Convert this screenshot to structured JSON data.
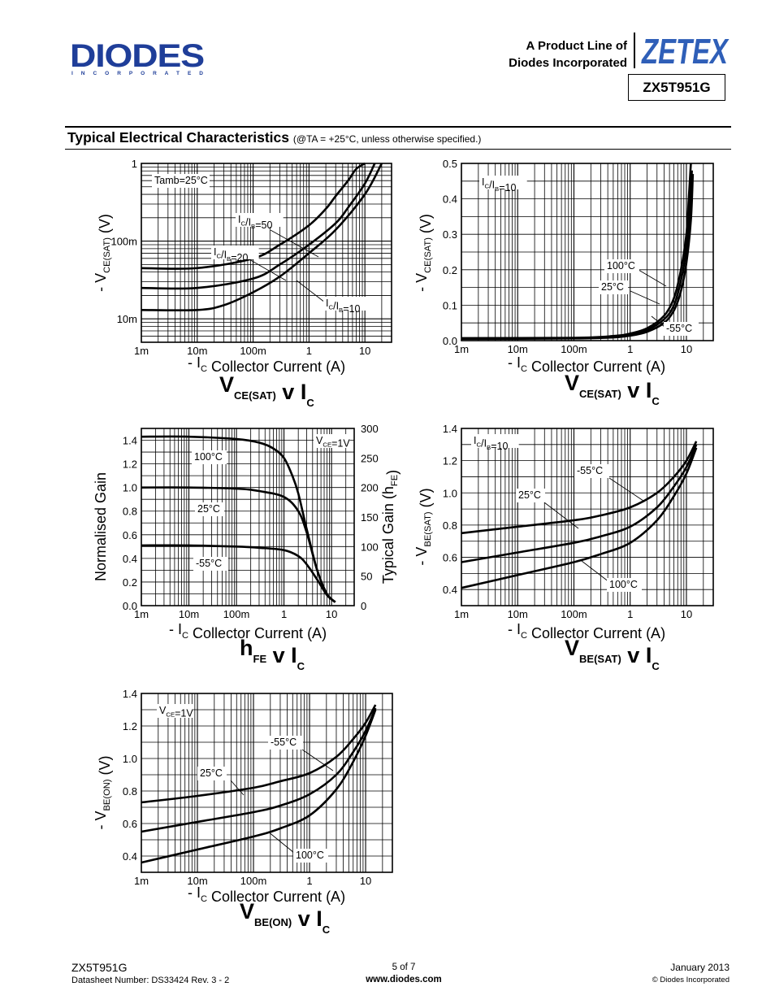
{
  "header": {
    "logo_text": "DIODES",
    "logo_sub": "I N C O R P O R A T E D",
    "product_line_1": "A Product Line of",
    "product_line_2": "Diodes Incorporated",
    "zetex_text": "ZETEX",
    "part_number": "ZX5T951G"
  },
  "section": {
    "title": "Typical Electrical Characteristics",
    "note": "(@TA = +25°C, unless otherwise specified.)"
  },
  "colors": {
    "ink": "#000000",
    "logo_blue": "#1f3e99",
    "zetex_blue": "#2f5fb8"
  },
  "chart_data": [
    {
      "id": "vcesat-tamb",
      "type": "line",
      "title": "VCE(SAT) v IC",
      "xlabel": "- IC Collector Current (A)",
      "ylabel": "- VCE(SAT) (V)",
      "xscale": "log",
      "yscale": "log",
      "xlim": [
        0.001,
        30
      ],
      "ylim": [
        0.005,
        1
      ],
      "xticks": [
        {
          "v": 0.001,
          "t": "1m"
        },
        {
          "v": 0.01,
          "t": "10m"
        },
        {
          "v": 0.1,
          "t": "100m"
        },
        {
          "v": 1,
          "t": "1"
        },
        {
          "v": 10,
          "t": "10"
        }
      ],
      "yticks": [
        {
          "v": 0.01,
          "t": "10m"
        },
        {
          "v": 0.1,
          "t": "100m"
        },
        {
          "v": 1,
          "t": "1"
        }
      ],
      "annotations": [
        "Tamb=25°C",
        "IC/IB=50",
        "IC/IB=20",
        "IC/IB=10"
      ],
      "series": [
        {
          "name": "IC/IB=50",
          "x": [
            0.001,
            0.01,
            0.1,
            0.3,
            1,
            2,
            3,
            5,
            7,
            10
          ],
          "y": [
            0.045,
            0.045,
            0.06,
            0.09,
            0.16,
            0.26,
            0.38,
            0.6,
            0.85,
            1.0
          ]
        },
        {
          "name": "IC/IB=20",
          "x": [
            0.001,
            0.01,
            0.1,
            0.3,
            1,
            3,
            5,
            10,
            15
          ],
          "y": [
            0.025,
            0.025,
            0.033,
            0.05,
            0.09,
            0.17,
            0.27,
            0.55,
            1.0
          ]
        },
        {
          "name": "IC/IB=10",
          "x": [
            0.001,
            0.01,
            0.03,
            0.1,
            0.3,
            1,
            3,
            10,
            20
          ],
          "y": [
            0.013,
            0.013,
            0.015,
            0.022,
            0.035,
            0.07,
            0.14,
            0.4,
            1.0
          ]
        }
      ]
    },
    {
      "id": "vcesat-temp",
      "type": "line",
      "title": "VCE(SAT) v IC",
      "xlabel": "- IC Collector Current (A)",
      "ylabel": "- VCE(SAT) (V)",
      "xscale": "log",
      "yscale": "linear",
      "xlim": [
        0.001,
        30
      ],
      "ylim": [
        0,
        0.5
      ],
      "xticks": [
        {
          "v": 0.001,
          "t": "1m"
        },
        {
          "v": 0.01,
          "t": "10m"
        },
        {
          "v": 0.1,
          "t": "100m"
        },
        {
          "v": 1,
          "t": "1"
        },
        {
          "v": 10,
          "t": "10"
        }
      ],
      "yticks": [
        {
          "v": 0,
          "t": "0.0"
        },
        {
          "v": 0.1,
          "t": "0.1"
        },
        {
          "v": 0.2,
          "t": "0.2"
        },
        {
          "v": 0.3,
          "t": "0.3"
        },
        {
          "v": 0.4,
          "t": "0.4"
        },
        {
          "v": 0.5,
          "t": "0.5"
        }
      ],
      "annotations": [
        "IC/IB=10",
        "100°C",
        "25°C",
        "-55°C"
      ],
      "series": [
        {
          "name": "100°C",
          "x": [
            0.001,
            0.1,
            0.5,
            1,
            2,
            4,
            6,
            8,
            10,
            11,
            12
          ],
          "y": [
            0.007,
            0.008,
            0.013,
            0.02,
            0.035,
            0.07,
            0.12,
            0.2,
            0.3,
            0.4,
            0.5
          ]
        },
        {
          "name": "25°C",
          "x": [
            0.001,
            0.1,
            0.5,
            1,
            2,
            4,
            6,
            8,
            10,
            11.5,
            12.5
          ],
          "y": [
            0.006,
            0.007,
            0.011,
            0.017,
            0.03,
            0.06,
            0.1,
            0.17,
            0.26,
            0.37,
            0.48
          ]
        },
        {
          "name": "-55°C",
          "x": [
            0.001,
            0.1,
            0.5,
            1,
            2,
            4,
            6,
            8,
            10,
            12,
            13
          ],
          "y": [
            0.005,
            0.006,
            0.009,
            0.014,
            0.025,
            0.05,
            0.085,
            0.14,
            0.22,
            0.34,
            0.47
          ]
        }
      ]
    },
    {
      "id": "hfe",
      "type": "line",
      "title": "hFE v IC",
      "xlabel": "- IC Collector Current (A)",
      "ylabel": "Normalised Gain",
      "y2label": "Typical Gain (hFE)",
      "xscale": "log",
      "yscale": "linear",
      "xlim": [
        0.001,
        30
      ],
      "ylim": [
        0,
        1.5
      ],
      "y2lim": [
        0,
        300
      ],
      "xticks": [
        {
          "v": 0.001,
          "t": "1m"
        },
        {
          "v": 0.01,
          "t": "10m"
        },
        {
          "v": 0.1,
          "t": "100m"
        },
        {
          "v": 1,
          "t": "1"
        },
        {
          "v": 10,
          "t": "10"
        }
      ],
      "yticks": [
        {
          "v": 0,
          "t": "0.0"
        },
        {
          "v": 0.2,
          "t": "0.2"
        },
        {
          "v": 0.4,
          "t": "0.4"
        },
        {
          "v": 0.6,
          "t": "0.6"
        },
        {
          "v": 0.8,
          "t": "0.8"
        },
        {
          "v": 1.0,
          "t": "1.0"
        },
        {
          "v": 1.2,
          "t": "1.2"
        },
        {
          "v": 1.4,
          "t": "1.4"
        }
      ],
      "y2ticks": [
        {
          "v": 0,
          "t": "0"
        },
        {
          "v": 50,
          "t": "50"
        },
        {
          "v": 100,
          "t": "100"
        },
        {
          "v": 150,
          "t": "150"
        },
        {
          "v": 200,
          "t": "200"
        },
        {
          "v": 250,
          "t": "250"
        },
        {
          "v": 300,
          "t": "300"
        }
      ],
      "annotations": [
        "VCE=1V",
        "100°C",
        "25°C",
        "-55°C"
      ],
      "series": [
        {
          "name": "100°C",
          "x": [
            0.001,
            0.01,
            0.1,
            0.3,
            0.6,
            1,
            1.5,
            2,
            3,
            5,
            8,
            12
          ],
          "y": [
            1.43,
            1.43,
            1.41,
            1.38,
            1.33,
            1.25,
            1.1,
            0.95,
            0.65,
            0.3,
            0.1,
            0.03
          ]
        },
        {
          "name": "25°C",
          "x": [
            0.001,
            0.01,
            0.1,
            0.3,
            1,
            2,
            3,
            5,
            8,
            12
          ],
          "y": [
            1.0,
            1.0,
            0.99,
            0.97,
            0.92,
            0.8,
            0.62,
            0.3,
            0.1,
            0.03
          ]
        },
        {
          "name": "-55°C",
          "x": [
            0.001,
            0.01,
            0.1,
            0.3,
            1,
            2,
            3,
            5,
            8,
            12
          ],
          "y": [
            0.51,
            0.51,
            0.5,
            0.49,
            0.47,
            0.42,
            0.35,
            0.22,
            0.09,
            0.03
          ]
        }
      ]
    },
    {
      "id": "vbesat",
      "type": "line",
      "title": "VBE(SAT) v IC",
      "xlabel": "- IC Collector Current (A)",
      "ylabel": "- VBE(SAT) (V)",
      "xscale": "log",
      "yscale": "linear",
      "xlim": [
        0.001,
        30
      ],
      "ylim": [
        0.3,
        1.4
      ],
      "xticks": [
        {
          "v": 0.001,
          "t": "1m"
        },
        {
          "v": 0.01,
          "t": "10m"
        },
        {
          "v": 0.1,
          "t": "100m"
        },
        {
          "v": 1,
          "t": "1"
        },
        {
          "v": 10,
          "t": "10"
        }
      ],
      "yticks": [
        {
          "v": 0.4,
          "t": "0.4"
        },
        {
          "v": 0.6,
          "t": "0.6"
        },
        {
          "v": 0.8,
          "t": "0.8"
        },
        {
          "v": 1.0,
          "t": "1.0"
        },
        {
          "v": 1.2,
          "t": "1.2"
        },
        {
          "v": 1.4,
          "t": "1.4"
        }
      ],
      "annotations": [
        "IC/IB=10",
        "-55°C",
        "25°C",
        "100°C"
      ],
      "series": [
        {
          "name": "-55°C",
          "x": [
            0.001,
            0.01,
            0.1,
            0.3,
            1,
            3,
            6,
            10,
            15
          ],
          "y": [
            0.75,
            0.79,
            0.83,
            0.86,
            0.91,
            1.0,
            1.1,
            1.2,
            1.32
          ]
        },
        {
          "name": "25°C",
          "x": [
            0.001,
            0.01,
            0.1,
            0.3,
            1,
            3,
            6,
            10,
            15
          ],
          "y": [
            0.57,
            0.63,
            0.69,
            0.73,
            0.79,
            0.91,
            1.04,
            1.16,
            1.3
          ]
        },
        {
          "name": "100°C",
          "x": [
            0.001,
            0.01,
            0.1,
            0.3,
            1,
            3,
            6,
            10,
            15
          ],
          "y": [
            0.41,
            0.49,
            0.57,
            0.62,
            0.69,
            0.83,
            0.98,
            1.12,
            1.28
          ]
        }
      ]
    },
    {
      "id": "vbeon",
      "type": "line",
      "title": "VBE(ON) v IC",
      "xlabel": "- IC Collector Current (A)",
      "ylabel": "- VBE(ON) (V)",
      "xscale": "log",
      "yscale": "linear",
      "xlim": [
        0.001,
        30
      ],
      "ylim": [
        0.3,
        1.4
      ],
      "xticks": [
        {
          "v": 0.001,
          "t": "1m"
        },
        {
          "v": 0.01,
          "t": "10m"
        },
        {
          "v": 0.1,
          "t": "100m"
        },
        {
          "v": 1,
          "t": "1"
        },
        {
          "v": 10,
          "t": "10"
        }
      ],
      "yticks": [
        {
          "v": 0.4,
          "t": "0.4"
        },
        {
          "v": 0.6,
          "t": "0.6"
        },
        {
          "v": 0.8,
          "t": "0.8"
        },
        {
          "v": 1.0,
          "t": "1.0"
        },
        {
          "v": 1.2,
          "t": "1.2"
        },
        {
          "v": 1.4,
          "t": "1.4"
        }
      ],
      "annotations": [
        "VCE=1V",
        "-55°C",
        "25°C",
        "100°C"
      ],
      "series": [
        {
          "name": "-55°C",
          "x": [
            0.001,
            0.01,
            0.1,
            0.3,
            1,
            3,
            6,
            10,
            15
          ],
          "y": [
            0.73,
            0.77,
            0.82,
            0.86,
            0.91,
            1.01,
            1.12,
            1.22,
            1.33
          ]
        },
        {
          "name": "25°C",
          "x": [
            0.001,
            0.01,
            0.1,
            0.3,
            1,
            3,
            6,
            10,
            15
          ],
          "y": [
            0.55,
            0.61,
            0.67,
            0.71,
            0.78,
            0.9,
            1.04,
            1.17,
            1.31
          ]
        },
        {
          "name": "100°C",
          "x": [
            0.001,
            0.01,
            0.1,
            0.3,
            1,
            3,
            6,
            10,
            15
          ],
          "y": [
            0.36,
            0.44,
            0.52,
            0.57,
            0.65,
            0.81,
            0.98,
            1.14,
            1.3
          ]
        }
      ]
    }
  ],
  "footer": {
    "part": "ZX5T951G",
    "datasheet": "Datasheet Number: DS33424 Rev. 3 - 2",
    "page": "5 of 7",
    "url": "www.diodes.com",
    "date": "January 2013",
    "copyright": "© Diodes Incorporated"
  }
}
